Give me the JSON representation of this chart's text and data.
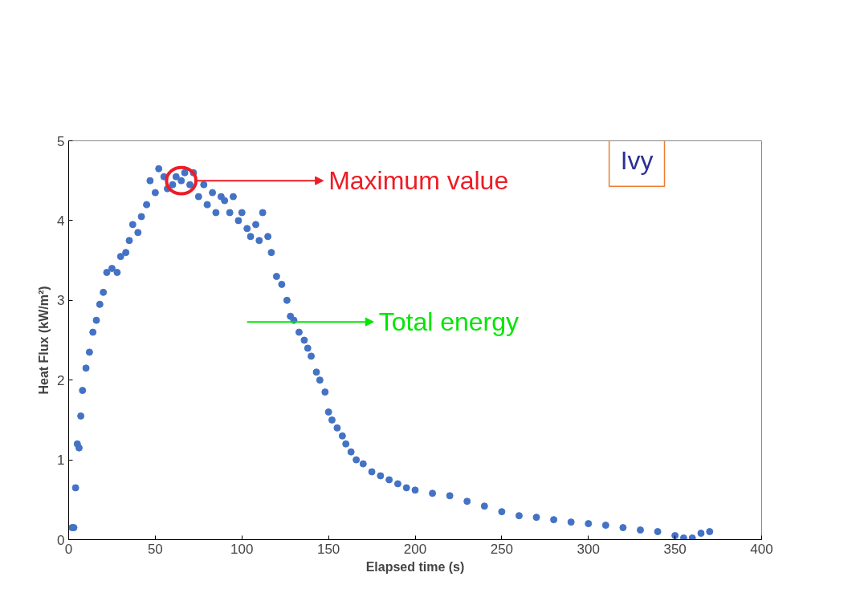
{
  "chart_data": {
    "type": "scatter",
    "xlabel": "Elapsed time (s)",
    "ylabel": "Heat Flux (kW/m²)",
    "xlim": [
      0,
      400
    ],
    "xticks": [
      0,
      50,
      100,
      150,
      200,
      250,
      300,
      350,
      400
    ],
    "ylim": [
      0,
      5
    ],
    "yticks": [
      0,
      1,
      2,
      3,
      4,
      5
    ],
    "grid": false,
    "marker": "circle",
    "series": [
      {
        "color": "#4472c4",
        "x": [
          2,
          3,
          4,
          5,
          6,
          7,
          8,
          10,
          12,
          14,
          16,
          18,
          20,
          22,
          25,
          28,
          30,
          33,
          35,
          37,
          40,
          42,
          45,
          47,
          50,
          52,
          55,
          57,
          60,
          62,
          65,
          67,
          70,
          72,
          75,
          78,
          80,
          83,
          85,
          88,
          90,
          93,
          95,
          98,
          100,
          103,
          105,
          108,
          110,
          112,
          115,
          117,
          120,
          123,
          126,
          128,
          130,
          133,
          136,
          138,
          140,
          143,
          145,
          148,
          150,
          152,
          155,
          158,
          160,
          163,
          166,
          170,
          175,
          180,
          185,
          190,
          195,
          200,
          210,
          220,
          230,
          240,
          250,
          260,
          270,
          280,
          290,
          300,
          310,
          320,
          330,
          340,
          350,
          355,
          360,
          365,
          370
        ],
        "values": [
          0.15,
          0.15,
          0.65,
          1.2,
          1.15,
          1.55,
          1.87,
          2.15,
          2.35,
          2.6,
          2.75,
          2.95,
          3.1,
          3.35,
          3.4,
          3.35,
          3.55,
          3.6,
          3.75,
          3.95,
          3.85,
          4.05,
          4.2,
          4.5,
          4.35,
          4.65,
          4.55,
          4.4,
          4.45,
          4.55,
          4.5,
          4.6,
          4.45,
          4.6,
          4.3,
          4.45,
          4.2,
          4.35,
          4.1,
          4.3,
          4.25,
          4.1,
          4.3,
          4.0,
          4.1,
          3.9,
          3.8,
          3.95,
          3.75,
          4.1,
          3.8,
          3.6,
          3.3,
          3.2,
          3.0,
          2.8,
          2.75,
          2.6,
          2.5,
          2.4,
          2.3,
          2.1,
          2.0,
          1.85,
          1.6,
          1.5,
          1.4,
          1.3,
          1.2,
          1.1,
          1.0,
          0.95,
          0.85,
          0.8,
          0.75,
          0.7,
          0.65,
          0.62,
          0.58,
          0.55,
          0.48,
          0.42,
          0.35,
          0.3,
          0.28,
          0.25,
          0.22,
          0.2,
          0.18,
          0.15,
          0.12,
          0.1,
          0.05,
          0.02,
          0.02,
          0.08,
          0.1
        ]
      }
    ],
    "annotations": [
      "Maximum value",
      "Total energy",
      "Ivy"
    ]
  }
}
